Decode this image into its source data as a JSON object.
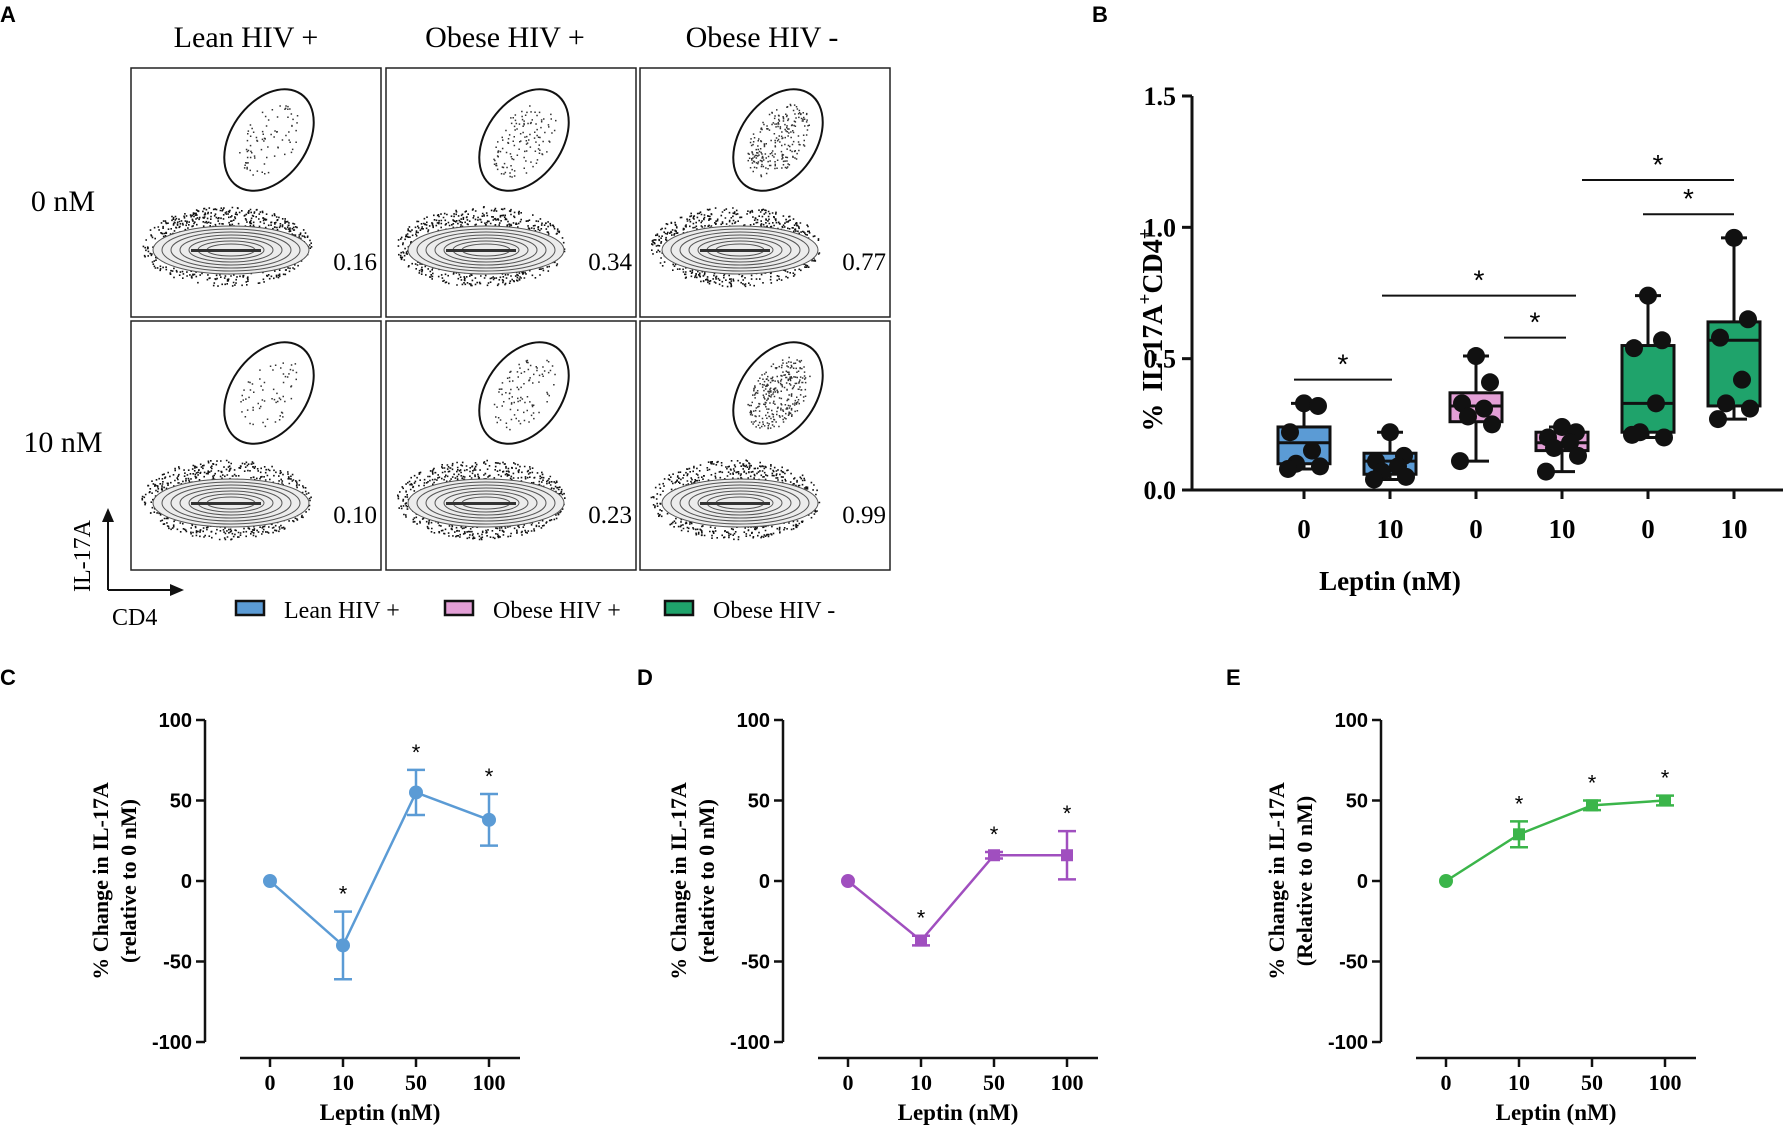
{
  "panel_a": {
    "letter": "A",
    "columns": [
      "Lean HIV +",
      "Obese HIV +",
      "Obese HIV -"
    ],
    "rows": [
      "0 nM",
      "10 nM"
    ],
    "gate_values": [
      [
        "0.16",
        "0.34",
        "0.77"
      ],
      [
        "0.10",
        "0.23",
        "0.99"
      ]
    ],
    "gate_density": [
      [
        0.16,
        0.34,
        0.77
      ],
      [
        0.1,
        0.23,
        0.99
      ]
    ],
    "y_axis": "IL-17A",
    "x_axis": "CD4",
    "legend": [
      {
        "label": "Lean HIV +",
        "color": "#5b9bd5"
      },
      {
        "label": "Obese HIV +",
        "color": "#e39fd6"
      },
      {
        "label": "Obese HIV -",
        "color": "#1fa36b"
      }
    ]
  },
  "panel_b_letter": "B",
  "panel_c_letter": "C",
  "panel_d_letter": "D",
  "panel_e_letter": "E",
  "sig_marker": "*",
  "chart_data": [
    {
      "id": "B",
      "type": "box",
      "ylabel_prefix": "%",
      "ylabel_main": "IL-17A",
      "ylabel_sup1": "+",
      "ylabel_cd4": "CD4",
      "ylabel_sup2": "+",
      "xlabel": "Leptin (nM)",
      "ylim": [
        0,
        1.5
      ],
      "yticks": [
        "0.0",
        "0.5",
        "1.0",
        "1.5"
      ],
      "ytick_values": [
        0,
        0.5,
        1.0,
        1.5
      ],
      "categories": [
        "0",
        "10",
        "0",
        "10",
        "0",
        "10"
      ],
      "groups": [
        {
          "name": "Lean HIV +",
          "color": "#5b9bd5",
          "leptin": "0",
          "min": 0.08,
          "q1": 0.1,
          "median": 0.18,
          "q3": 0.24,
          "max": 0.33,
          "points": [
            0.33,
            0.32,
            0.22,
            0.15,
            0.1,
            0.09,
            0.08
          ]
        },
        {
          "name": "Lean HIV +",
          "color": "#5b9bd5",
          "leptin": "10",
          "min": 0.04,
          "q1": 0.06,
          "median": 0.11,
          "q3": 0.14,
          "max": 0.22,
          "points": [
            0.22,
            0.13,
            0.11,
            0.09,
            0.07,
            0.05,
            0.04
          ]
        },
        {
          "name": "Obese HIV +",
          "color": "#e39fd6",
          "leptin": "0",
          "min": 0.11,
          "q1": 0.26,
          "median": 0.32,
          "q3": 0.37,
          "max": 0.51,
          "points": [
            0.51,
            0.41,
            0.33,
            0.31,
            0.28,
            0.25,
            0.11
          ]
        },
        {
          "name": "Obese HIV +",
          "color": "#e39fd6",
          "leptin": "10",
          "min": 0.07,
          "q1": 0.15,
          "median": 0.18,
          "q3": 0.22,
          "max": 0.24,
          "points": [
            0.24,
            0.22,
            0.2,
            0.18,
            0.16,
            0.13,
            0.07
          ]
        },
        {
          "name": "Obese HIV -",
          "color": "#1fa36b",
          "leptin": "0",
          "min": 0.2,
          "q1": 0.22,
          "median": 0.33,
          "q3": 0.55,
          "max": 0.74,
          "points": [
            0.74,
            0.57,
            0.54,
            0.33,
            0.22,
            0.2,
            0.21
          ]
        },
        {
          "name": "Obese HIV -",
          "color": "#1fa36b",
          "leptin": "10",
          "min": 0.27,
          "q1": 0.32,
          "median": 0.57,
          "q3": 0.64,
          "max": 0.96,
          "points": [
            0.96,
            0.65,
            0.58,
            0.42,
            0.33,
            0.31,
            0.27
          ]
        }
      ],
      "significance": [
        {
          "from": 0,
          "to": 1,
          "y": 0.42
        },
        {
          "from": 1,
          "to": 4,
          "y": 0.74
        },
        {
          "from": 3,
          "to": 4,
          "y": 0.58
        },
        {
          "from": 4,
          "to": 6,
          "y": 1.18
        },
        {
          "from": 5,
          "to": 6,
          "y": 1.05
        }
      ]
    },
    {
      "id": "C",
      "type": "line",
      "color": "#5b9bd5",
      "marker": "circle",
      "ylabel_line1": "%  Change in IL-17A",
      "ylabel_line2": "(relative to 0 nM)",
      "xlabel": "Leptin (nM)",
      "ylim": [
        -100,
        100
      ],
      "yticks": [
        "100",
        "50",
        "0",
        "-50",
        "-100"
      ],
      "ytick_values": [
        100,
        50,
        0,
        -50,
        -100
      ],
      "categories": [
        "0",
        "10",
        "50",
        "100"
      ],
      "values": [
        0,
        -40,
        55,
        38
      ],
      "errors": [
        0,
        21,
        14,
        16
      ],
      "significant": [
        false,
        true,
        true,
        true
      ]
    },
    {
      "id": "D",
      "type": "line",
      "color": "#a04fbf",
      "marker": "square",
      "ylabel_line1": "%  Change in IL-17A",
      "ylabel_line2": "(relative to 0 nM)",
      "xlabel": "Leptin (nM)",
      "ylim": [
        -100,
        100
      ],
      "yticks": [
        "100",
        "50",
        "0",
        "-50",
        "-100"
      ],
      "ytick_values": [
        100,
        50,
        0,
        -50,
        -100
      ],
      "categories": [
        "0",
        "10",
        "50",
        "100"
      ],
      "values": [
        0,
        -37,
        16,
        16
      ],
      "errors": [
        0,
        3,
        2,
        15
      ],
      "significant": [
        false,
        true,
        true,
        true
      ]
    },
    {
      "id": "E",
      "type": "line",
      "color": "#3bb54a",
      "marker": "square",
      "ylabel_line1": "%  Change in IL-17A",
      "ylabel_line2": "(Relative to 0 nM)",
      "xlabel": "Leptin (nM)",
      "ylim": [
        -100,
        100
      ],
      "yticks": [
        "100",
        "50",
        "0",
        "-50",
        "-100"
      ],
      "ytick_values": [
        100,
        50,
        0,
        -50,
        -100
      ],
      "categories": [
        "0",
        "10",
        "50",
        "100"
      ],
      "values": [
        0,
        29,
        47,
        50
      ],
      "errors": [
        0,
        8,
        3,
        3
      ],
      "significant": [
        false,
        true,
        true,
        true
      ]
    }
  ]
}
